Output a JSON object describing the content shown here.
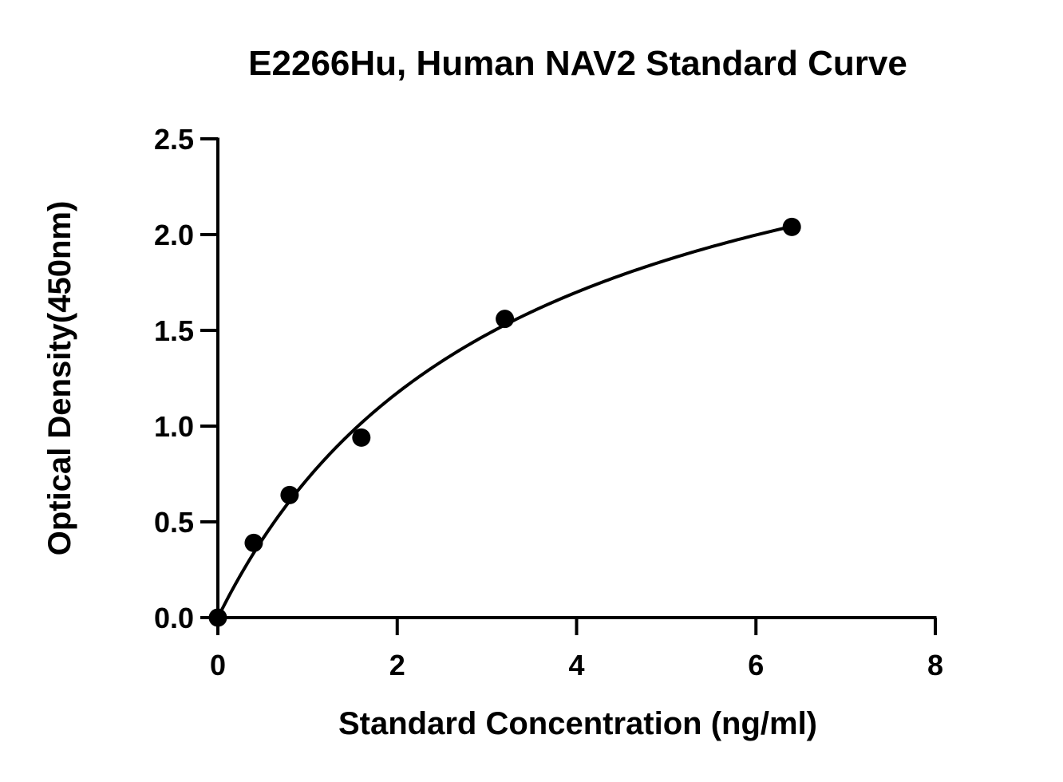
{
  "chart_data": {
    "type": "scatter",
    "title": "E2266Hu, Human NAV2 Standard Curve",
    "xlabel": "Standard Concentration (ng/ml)",
    "ylabel": "Optical Density(450nm)",
    "xlim": [
      0,
      8
    ],
    "ylim": [
      0,
      2.5
    ],
    "x_ticks": [
      "0",
      "2",
      "4",
      "6",
      "8"
    ],
    "y_ticks": [
      "0.0",
      "0.5",
      "1.0",
      "1.5",
      "2.0",
      "2.5"
    ],
    "grid": false,
    "legend": "none",
    "series": [
      {
        "points": [
          {
            "x": 0,
            "y": 0.0
          },
          {
            "x": 0.4,
            "y": 0.39
          },
          {
            "x": 0.8,
            "y": 0.64
          },
          {
            "x": 1.6,
            "y": 0.94
          },
          {
            "x": 3.2,
            "y": 1.56
          },
          {
            "x": 6.4,
            "y": 2.04
          }
        ],
        "fit_curve": true
      }
    ],
    "colors": {
      "marker": "#000000",
      "line": "#000000",
      "axis": "#000000"
    }
  }
}
